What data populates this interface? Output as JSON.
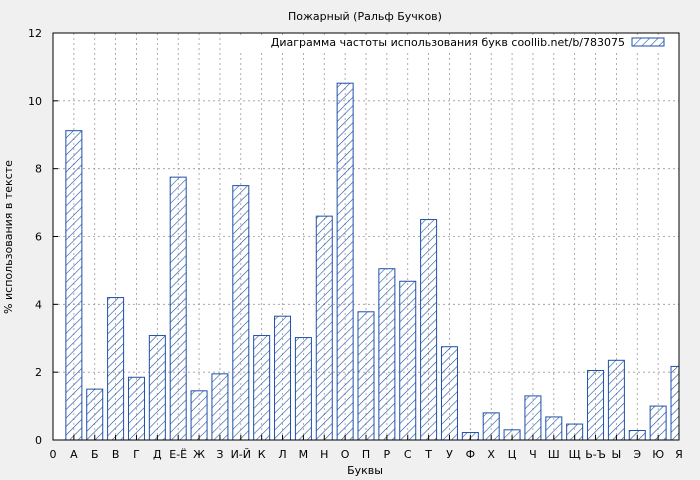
{
  "chart_data": {
    "type": "bar",
    "title": "Пожарный (Ральф Бучков)",
    "xlabel": "Буквы",
    "ylabel": "% использования в тексте",
    "ylim": [
      0,
      12
    ],
    "yticks": [
      0,
      2,
      4,
      6,
      8,
      10,
      12
    ],
    "grid": true,
    "legend_position": "top-right",
    "bar_color": "#1f4fa8",
    "categories": [
      "0",
      "А",
      "Б",
      "В",
      "Г",
      "Д",
      "Е-Ё",
      "Ж",
      "З",
      "И-Й",
      "К",
      "Л",
      "М",
      "Н",
      "О",
      "П",
      "Р",
      "С",
      "Т",
      "У",
      "Ф",
      "Х",
      "Ц",
      "Ч",
      "Ш",
      "Щ",
      "Ь-Ъ",
      "Ы",
      "Э",
      "Ю",
      "Я"
    ],
    "series": [
      {
        "name": "Диаграмма частоты использования букв coollib.net/b/783075",
        "values": [
          0,
          9.12,
          1.5,
          4.2,
          1.85,
          3.08,
          7.75,
          1.45,
          1.95,
          7.5,
          3.08,
          3.65,
          3.02,
          6.6,
          10.52,
          3.78,
          5.05,
          4.68,
          6.5,
          2.75,
          0.22,
          0.8,
          0.3,
          1.3,
          0.68,
          0.47,
          2.05,
          2.35,
          0.28,
          1.0,
          2.17
        ]
      }
    ]
  }
}
